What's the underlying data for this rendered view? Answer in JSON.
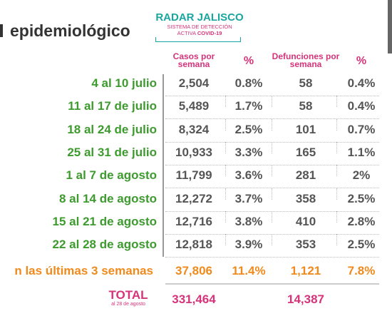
{
  "header": {
    "title": "epidemiológico",
    "logo": {
      "name": "RADAR JALISCO",
      "line1": "SISTEMA DE DETECCIÓN",
      "line2": "ACTIVA",
      "line2_bold": "COVID-19"
    }
  },
  "table": {
    "columns": [
      "Casos por semana",
      "%",
      "Defunciones por semana",
      "%"
    ],
    "rows": [
      [
        "4 al 10 julio",
        "2,504",
        "0.8%",
        "58",
        "0.4%"
      ],
      [
        "11 al 17 de julio",
        "5,489",
        "1.7%",
        "58",
        "0.4%"
      ],
      [
        "18 al 24 de julio",
        "8,324",
        "2.5%",
        "101",
        "0.7%"
      ],
      [
        "25 al 31 de julio",
        "10,933",
        "3.3%",
        "165",
        "1.1%"
      ],
      [
        "1 al 7 de agosto",
        "11,799",
        "3.6%",
        "281",
        "2%"
      ],
      [
        "8 al 14 de agosto",
        "12,272",
        "3.7%",
        "358",
        "2.5%"
      ],
      [
        "15 al 21 de agosto",
        "12,716",
        "3.8%",
        "410",
        "2.8%"
      ],
      [
        "22 al 28 de agosto",
        "12,818",
        "3.9%",
        "353",
        "2.5%"
      ]
    ],
    "summary": [
      "n las últimas 3 semanas",
      "37,806",
      "11.4%",
      "1,121",
      "7.8%"
    ],
    "total": {
      "label": "TOTAL",
      "sublabel": "al 28 de agosto",
      "cases": "331,464",
      "deaths": "14,387"
    }
  }
}
